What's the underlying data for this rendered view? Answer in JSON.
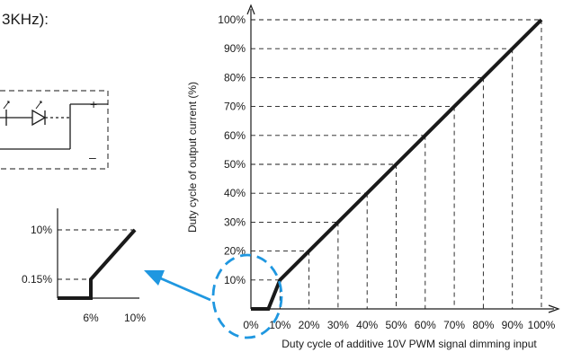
{
  "header_fragment": "3KHz):",
  "circuit": {
    "plus": "+",
    "minus": "–"
  },
  "chart_data": [
    {
      "type": "line",
      "xlabel": "Duty cycle of additive 10V PWM signal dimming input",
      "ylabel": "Duty cycle of output current (%)",
      "x_ticks": [
        "0%",
        "10%",
        "20%",
        "30%",
        "40%",
        "50%",
        "60%",
        "70%",
        "80%",
        "90%",
        "100%"
      ],
      "y_ticks": [
        "10%",
        "20%",
        "30%",
        "40%",
        "50%",
        "60%",
        "70%",
        "80%",
        "90%",
        "100%"
      ],
      "xlim": [
        0,
        100
      ],
      "ylim": [
        0,
        100
      ],
      "grid": "dashed drop lines",
      "series": [
        {
          "x": [
            0,
            6,
            10,
            20,
            30,
            40,
            50,
            60,
            70,
            80,
            90,
            100
          ],
          "y": [
            0,
            0,
            10,
            20,
            30,
            40,
            50,
            60,
            70,
            80,
            90,
            100
          ]
        }
      ]
    },
    {
      "type": "line",
      "x_ticks": [
        "6%",
        "10%"
      ],
      "y_ticks": [
        "0.15%",
        "10%"
      ],
      "series": [
        {
          "x": [
            0,
            6,
            6,
            10
          ],
          "y": [
            0,
            0,
            0.15,
            10
          ]
        }
      ]
    }
  ]
}
